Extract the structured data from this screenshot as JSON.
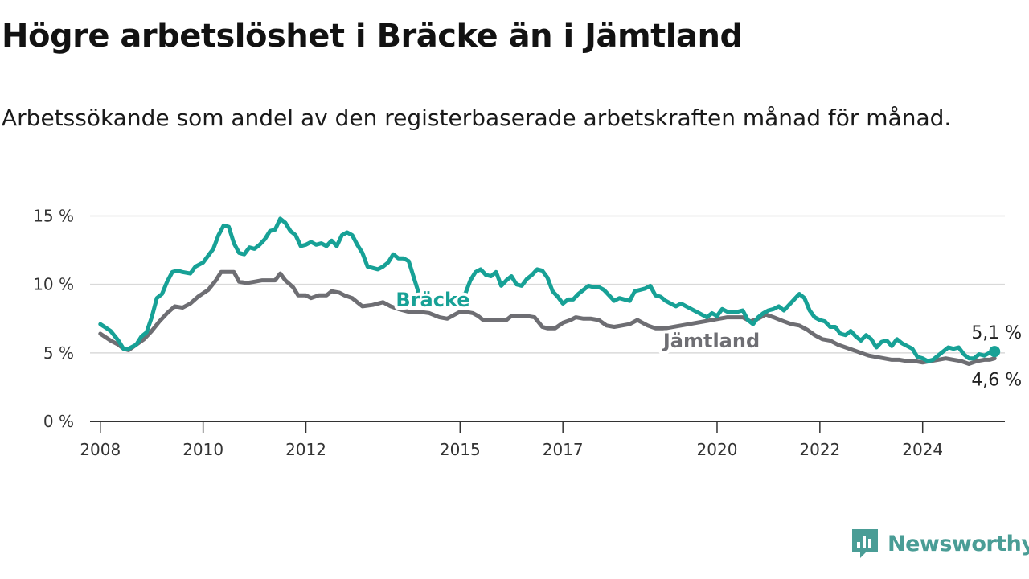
{
  "title": "Högre arbetslöshet i Bräcke än i Jämtland",
  "subtitle": "Arbetssökande som andel av den registerbaserade arbetskraften månad för månad.",
  "brand": {
    "name": "Newsworthy",
    "icon": "newsworthy-logo-icon",
    "color": "#4a9d96"
  },
  "colors": {
    "bracke": "#17a196",
    "jamtland": "#6e6e73",
    "grid": "#d9d9d9",
    "axis": "#333333"
  },
  "chart_data": {
    "type": "line",
    "ylim": [
      0,
      15.5
    ],
    "xlim": [
      2007.8,
      2025.6
    ],
    "yticks": [
      0,
      5,
      10,
      15
    ],
    "ytick_labels": [
      "0 %",
      "5 %",
      "10 %",
      "15 %"
    ],
    "xticks": [
      2008,
      2010,
      2012,
      2015,
      2017,
      2020,
      2022,
      2024
    ],
    "xtick_labels": [
      "2008",
      "2010",
      "2012",
      "2015",
      "2017",
      "2020",
      "2022",
      "2024"
    ],
    "grid": "horizontal",
    "series": [
      {
        "name": "Bräcke",
        "color": "#17a196",
        "end_label": "5,1 %",
        "points": [
          [
            2008.0,
            7.1
          ],
          [
            2008.2,
            6.6
          ],
          [
            2008.35,
            5.9
          ],
          [
            2008.45,
            5.3
          ],
          [
            2008.55,
            5.3
          ],
          [
            2008.7,
            5.6
          ],
          [
            2008.8,
            6.2
          ],
          [
            2008.9,
            6.5
          ],
          [
            2009.0,
            7.6
          ],
          [
            2009.1,
            9.0
          ],
          [
            2009.2,
            9.3
          ],
          [
            2009.3,
            10.2
          ],
          [
            2009.4,
            10.9
          ],
          [
            2009.5,
            11.0
          ],
          [
            2009.6,
            10.9
          ],
          [
            2009.75,
            10.8
          ],
          [
            2009.85,
            11.3
          ],
          [
            2010.0,
            11.6
          ],
          [
            2010.1,
            12.1
          ],
          [
            2010.2,
            12.6
          ],
          [
            2010.3,
            13.6
          ],
          [
            2010.4,
            14.3
          ],
          [
            2010.5,
            14.2
          ],
          [
            2010.6,
            13.0
          ],
          [
            2010.7,
            12.3
          ],
          [
            2010.8,
            12.2
          ],
          [
            2010.9,
            12.7
          ],
          [
            2011.0,
            12.6
          ],
          [
            2011.1,
            12.9
          ],
          [
            2011.2,
            13.3
          ],
          [
            2011.3,
            13.9
          ],
          [
            2011.4,
            14.0
          ],
          [
            2011.5,
            14.8
          ],
          [
            2011.6,
            14.5
          ],
          [
            2011.7,
            13.9
          ],
          [
            2011.8,
            13.6
          ],
          [
            2011.9,
            12.8
          ],
          [
            2012.0,
            12.9
          ],
          [
            2012.1,
            13.1
          ],
          [
            2012.2,
            12.9
          ],
          [
            2012.3,
            13.0
          ],
          [
            2012.4,
            12.8
          ],
          [
            2012.5,
            13.2
          ],
          [
            2012.6,
            12.8
          ],
          [
            2012.7,
            13.6
          ],
          [
            2012.8,
            13.8
          ],
          [
            2012.9,
            13.6
          ],
          [
            2013.0,
            12.9
          ],
          [
            2013.1,
            12.3
          ],
          [
            2013.2,
            11.3
          ],
          [
            2013.3,
            11.2
          ],
          [
            2013.4,
            11.1
          ],
          [
            2013.5,
            11.3
          ],
          [
            2013.6,
            11.6
          ],
          [
            2013.7,
            12.2
          ],
          [
            2013.8,
            11.9
          ],
          [
            2013.9,
            11.9
          ],
          [
            2014.0,
            11.7
          ],
          [
            2014.1,
            10.5
          ],
          [
            2014.2,
            9.3
          ],
          [
            2014.4,
            8.8
          ],
          [
            2014.6,
            8.7
          ],
          [
            2014.8,
            8.6
          ],
          [
            2014.9,
            8.7
          ],
          [
            2015.0,
            9.2
          ],
          [
            2015.1,
            9.3
          ],
          [
            2015.2,
            10.3
          ],
          [
            2015.3,
            10.9
          ],
          [
            2015.4,
            11.1
          ],
          [
            2015.5,
            10.7
          ],
          [
            2015.6,
            10.6
          ],
          [
            2015.7,
            10.9
          ],
          [
            2015.8,
            9.9
          ],
          [
            2015.9,
            10.3
          ],
          [
            2016.0,
            10.6
          ],
          [
            2016.1,
            10.0
          ],
          [
            2016.2,
            9.9
          ],
          [
            2016.3,
            10.4
          ],
          [
            2016.4,
            10.7
          ],
          [
            2016.5,
            11.1
          ],
          [
            2016.6,
            11.0
          ],
          [
            2016.7,
            10.5
          ],
          [
            2016.8,
            9.5
          ],
          [
            2016.9,
            9.1
          ],
          [
            2017.0,
            8.6
          ],
          [
            2017.1,
            8.9
          ],
          [
            2017.2,
            8.9
          ],
          [
            2017.3,
            9.3
          ],
          [
            2017.4,
            9.6
          ],
          [
            2017.5,
            9.9
          ],
          [
            2017.6,
            9.8
          ],
          [
            2017.7,
            9.8
          ],
          [
            2017.8,
            9.6
          ],
          [
            2017.9,
            9.2
          ],
          [
            2018.0,
            8.8
          ],
          [
            2018.1,
            9.0
          ],
          [
            2018.2,
            8.9
          ],
          [
            2018.3,
            8.8
          ],
          [
            2018.4,
            9.5
          ],
          [
            2018.5,
            9.6
          ],
          [
            2018.6,
            9.7
          ],
          [
            2018.7,
            9.9
          ],
          [
            2018.8,
            9.2
          ],
          [
            2018.9,
            9.1
          ],
          [
            2019.0,
            8.8
          ],
          [
            2019.1,
            8.6
          ],
          [
            2019.2,
            8.4
          ],
          [
            2019.3,
            8.6
          ],
          [
            2019.4,
            8.4
          ],
          [
            2019.5,
            8.2
          ],
          [
            2019.6,
            8.0
          ],
          [
            2019.7,
            7.8
          ],
          [
            2019.8,
            7.6
          ],
          [
            2019.9,
            7.9
          ],
          [
            2020.0,
            7.7
          ],
          [
            2020.1,
            8.2
          ],
          [
            2020.2,
            8.0
          ],
          [
            2020.3,
            8.0
          ],
          [
            2020.4,
            8.0
          ],
          [
            2020.5,
            8.1
          ],
          [
            2020.6,
            7.4
          ],
          [
            2020.7,
            7.1
          ],
          [
            2020.8,
            7.6
          ],
          [
            2020.9,
            7.9
          ],
          [
            2021.0,
            8.1
          ],
          [
            2021.1,
            8.2
          ],
          [
            2021.2,
            8.4
          ],
          [
            2021.3,
            8.1
          ],
          [
            2021.4,
            8.5
          ],
          [
            2021.5,
            8.9
          ],
          [
            2021.6,
            9.3
          ],
          [
            2021.7,
            9.0
          ],
          [
            2021.8,
            8.1
          ],
          [
            2021.9,
            7.6
          ],
          [
            2022.0,
            7.4
          ],
          [
            2022.1,
            7.3
          ],
          [
            2022.2,
            6.9
          ],
          [
            2022.3,
            6.9
          ],
          [
            2022.4,
            6.4
          ],
          [
            2022.5,
            6.3
          ],
          [
            2022.6,
            6.6
          ],
          [
            2022.7,
            6.2
          ],
          [
            2022.8,
            5.9
          ],
          [
            2022.9,
            6.3
          ],
          [
            2023.0,
            6.0
          ],
          [
            2023.1,
            5.4
          ],
          [
            2023.2,
            5.8
          ],
          [
            2023.3,
            5.9
          ],
          [
            2023.4,
            5.5
          ],
          [
            2023.5,
            6.0
          ],
          [
            2023.6,
            5.7
          ],
          [
            2023.7,
            5.5
          ],
          [
            2023.8,
            5.3
          ],
          [
            2023.9,
            4.7
          ],
          [
            2024.0,
            4.6
          ],
          [
            2024.1,
            4.4
          ],
          [
            2024.2,
            4.5
          ],
          [
            2024.3,
            4.8
          ],
          [
            2024.4,
            5.1
          ],
          [
            2024.5,
            5.4
          ],
          [
            2024.6,
            5.3
          ],
          [
            2024.7,
            5.4
          ],
          [
            2024.8,
            4.9
          ],
          [
            2024.9,
            4.6
          ],
          [
            2025.0,
            4.6
          ],
          [
            2025.1,
            4.9
          ],
          [
            2025.2,
            4.8
          ],
          [
            2025.3,
            5.0
          ],
          [
            2025.4,
            5.1
          ]
        ]
      },
      {
        "name": "Jämtland",
        "color": "#6e6e73",
        "end_label": "4,6 %",
        "points": [
          [
            2008.0,
            6.4
          ],
          [
            2008.2,
            5.9
          ],
          [
            2008.35,
            5.6
          ],
          [
            2008.45,
            5.3
          ],
          [
            2008.55,
            5.2
          ],
          [
            2008.7,
            5.6
          ],
          [
            2008.85,
            6.0
          ],
          [
            2009.0,
            6.6
          ],
          [
            2009.15,
            7.3
          ],
          [
            2009.3,
            7.9
          ],
          [
            2009.45,
            8.4
          ],
          [
            2009.6,
            8.3
          ],
          [
            2009.75,
            8.6
          ],
          [
            2009.9,
            9.1
          ],
          [
            2010.1,
            9.6
          ],
          [
            2010.25,
            10.3
          ],
          [
            2010.35,
            10.9
          ],
          [
            2010.5,
            10.9
          ],
          [
            2010.6,
            10.9
          ],
          [
            2010.7,
            10.2
          ],
          [
            2010.85,
            10.1
          ],
          [
            2011.0,
            10.2
          ],
          [
            2011.15,
            10.3
          ],
          [
            2011.3,
            10.3
          ],
          [
            2011.4,
            10.3
          ],
          [
            2011.5,
            10.8
          ],
          [
            2011.6,
            10.3
          ],
          [
            2011.75,
            9.8
          ],
          [
            2011.85,
            9.2
          ],
          [
            2012.0,
            9.2
          ],
          [
            2012.1,
            9.0
          ],
          [
            2012.25,
            9.2
          ],
          [
            2012.4,
            9.2
          ],
          [
            2012.5,
            9.5
          ],
          [
            2012.65,
            9.4
          ],
          [
            2012.75,
            9.2
          ],
          [
            2012.9,
            9.0
          ],
          [
            2013.0,
            8.7
          ],
          [
            2013.1,
            8.4
          ],
          [
            2013.3,
            8.5
          ],
          [
            2013.5,
            8.7
          ],
          [
            2013.65,
            8.4
          ],
          [
            2013.8,
            8.2
          ],
          [
            2014.0,
            8.0
          ],
          [
            2014.2,
            8.0
          ],
          [
            2014.4,
            7.9
          ],
          [
            2014.6,
            7.6
          ],
          [
            2014.75,
            7.5
          ],
          [
            2014.9,
            7.8
          ],
          [
            2015.0,
            8.0
          ],
          [
            2015.1,
            8.0
          ],
          [
            2015.25,
            7.9
          ],
          [
            2015.35,
            7.7
          ],
          [
            2015.45,
            7.4
          ],
          [
            2015.6,
            7.4
          ],
          [
            2015.75,
            7.4
          ],
          [
            2015.9,
            7.4
          ],
          [
            2016.0,
            7.7
          ],
          [
            2016.15,
            7.7
          ],
          [
            2016.3,
            7.7
          ],
          [
            2016.45,
            7.6
          ],
          [
            2016.6,
            6.9
          ],
          [
            2016.7,
            6.8
          ],
          [
            2016.85,
            6.8
          ],
          [
            2017.0,
            7.2
          ],
          [
            2017.15,
            7.4
          ],
          [
            2017.25,
            7.6
          ],
          [
            2017.4,
            7.5
          ],
          [
            2017.55,
            7.5
          ],
          [
            2017.7,
            7.4
          ],
          [
            2017.85,
            7.0
          ],
          [
            2018.0,
            6.9
          ],
          [
            2018.15,
            7.0
          ],
          [
            2018.3,
            7.1
          ],
          [
            2018.45,
            7.4
          ],
          [
            2018.55,
            7.2
          ],
          [
            2018.65,
            7.0
          ],
          [
            2018.8,
            6.8
          ],
          [
            2019.0,
            6.8
          ],
          [
            2019.3,
            7.0
          ],
          [
            2019.6,
            7.2
          ],
          [
            2019.9,
            7.4
          ],
          [
            2020.2,
            7.6
          ],
          [
            2020.5,
            7.6
          ],
          [
            2020.65,
            7.3
          ],
          [
            2020.8,
            7.5
          ],
          [
            2020.95,
            7.8
          ],
          [
            2021.1,
            7.6
          ],
          [
            2021.3,
            7.3
          ],
          [
            2021.45,
            7.1
          ],
          [
            2021.6,
            7.0
          ],
          [
            2021.75,
            6.7
          ],
          [
            2021.9,
            6.3
          ],
          [
            2022.05,
            6.0
          ],
          [
            2022.2,
            5.9
          ],
          [
            2022.35,
            5.6
          ],
          [
            2022.5,
            5.4
          ],
          [
            2022.65,
            5.2
          ],
          [
            2022.8,
            5.0
          ],
          [
            2022.95,
            4.8
          ],
          [
            2023.1,
            4.7
          ],
          [
            2023.25,
            4.6
          ],
          [
            2023.4,
            4.5
          ],
          [
            2023.55,
            4.5
          ],
          [
            2023.7,
            4.4
          ],
          [
            2023.85,
            4.4
          ],
          [
            2024.0,
            4.3
          ],
          [
            2024.15,
            4.4
          ],
          [
            2024.3,
            4.5
          ],
          [
            2024.45,
            4.6
          ],
          [
            2024.6,
            4.5
          ],
          [
            2024.75,
            4.4
          ],
          [
            2024.9,
            4.2
          ],
          [
            2025.05,
            4.4
          ],
          [
            2025.2,
            4.5
          ],
          [
            2025.3,
            4.5
          ],
          [
            2025.4,
            4.6
          ]
        ]
      }
    ]
  }
}
